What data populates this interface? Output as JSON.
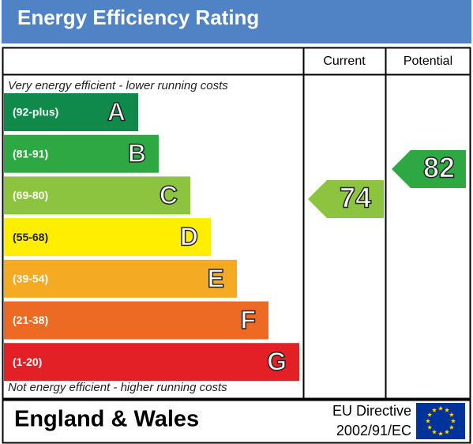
{
  "header": {
    "title": "Energy Efficiency Rating"
  },
  "columns": [
    "Current",
    "Potential"
  ],
  "top_note": "Very energy efficient - lower running costs",
  "bottom_note": "Not energy efficient - higher running costs",
  "bands": [
    {
      "range": "(92-plus)",
      "letter": "A",
      "color": "#0f8a4a"
    },
    {
      "range": "(81-91)",
      "letter": "B",
      "color": "#2ea843"
    },
    {
      "range": "(69-80)",
      "letter": "C",
      "color": "#8cc43f"
    },
    {
      "range": "(55-68)",
      "letter": "D",
      "color": "#ffee00"
    },
    {
      "range": "(39-54)",
      "letter": "E",
      "color": "#f5aa24"
    },
    {
      "range": "(21-38)",
      "letter": "F",
      "color": "#ec6a24"
    },
    {
      "range": "(1-20)",
      "letter": "G",
      "color": "#e42027"
    }
  ],
  "current": {
    "value": 74,
    "color": "#8cc43f"
  },
  "potential": {
    "value": 82,
    "color": "#2ea843"
  },
  "footer": {
    "region": "England & Wales",
    "directive": "EU Directive",
    "directive_number": "2002/91/EC"
  }
}
